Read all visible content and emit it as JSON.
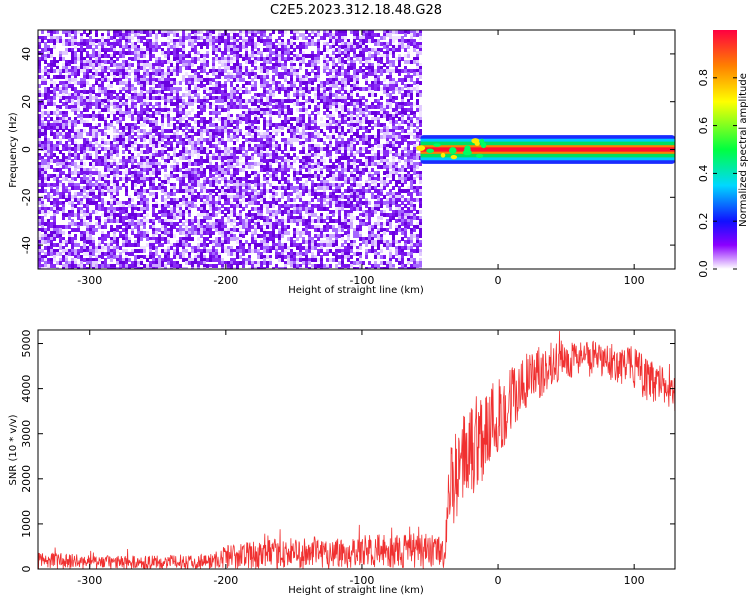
{
  "title": "C2E5.2023.312.18.48.G28",
  "chart_data": [
    {
      "type": "heatmap",
      "xlabel": "Height of straight line (km)",
      "ylabel": "Frequency (Hz)",
      "xlim": [
        -338,
        130
      ],
      "ylim": [
        -50,
        50
      ],
      "xticks": [
        -300,
        -200,
        -100,
        0,
        100
      ],
      "yticks": [
        -40,
        -20,
        0,
        20,
        40
      ],
      "noise_region_x": [
        -338,
        -57
      ],
      "signal_band": {
        "x_start": -57,
        "x_end": 130,
        "freq_center": 0,
        "half_width": 3
      },
      "colorbar": {
        "label": "Normalized spectral amplitude",
        "range": [
          0,
          1
        ],
        "ticks": [
          0.0,
          0.2,
          0.4,
          0.6,
          0.8
        ]
      },
      "grid": false
    },
    {
      "type": "line",
      "xlabel": "Height of straight line (km)",
      "ylabel": "SNR (10 * v/v)",
      "xlim": [
        -338,
        130
      ],
      "ylim": [
        0,
        5300
      ],
      "xticks": [
        -300,
        -200,
        -100,
        0,
        100
      ],
      "yticks": [
        0,
        1000,
        2000,
        3000,
        4000,
        5000
      ],
      "color": "#f03030",
      "envelope": {
        "x": [
          -338,
          -300,
          -250,
          -210,
          -200,
          -150,
          -100,
          -60,
          -40,
          -35,
          -20,
          0,
          20,
          40,
          60,
          80,
          100,
          110,
          120,
          130
        ],
        "low": [
          0,
          0,
          0,
          0,
          0,
          0,
          0,
          0,
          0,
          900,
          1500,
          2500,
          3400,
          4100,
          4300,
          4200,
          4000,
          3700,
          3700,
          3500
        ],
        "high": [
          400,
          300,
          300,
          350,
          550,
          700,
          750,
          800,
          750,
          2700,
          3900,
          4300,
          4800,
          5050,
          5100,
          5000,
          4950,
          4650,
          4500,
          4300
        ]
      },
      "grid": false
    }
  ]
}
